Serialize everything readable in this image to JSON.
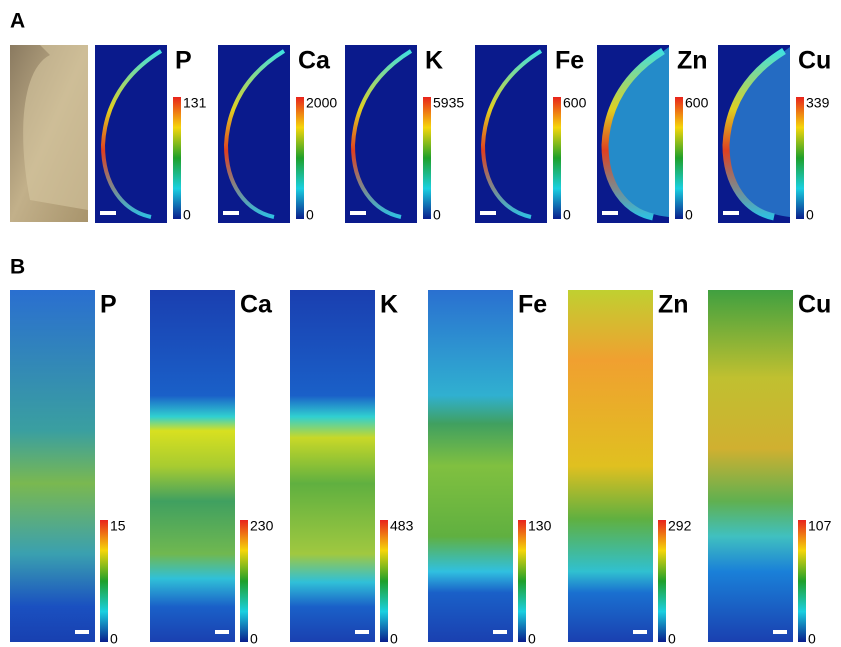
{
  "panels": [
    {
      "label": "A",
      "maps": [
        {
          "element": "P",
          "max": 131,
          "min": 0
        },
        {
          "element": "Ca",
          "max": 2000,
          "min": 0
        },
        {
          "element": "K",
          "max": 5935,
          "min": 0
        },
        {
          "element": "Fe",
          "max": 600,
          "min": 0
        },
        {
          "element": "Zn",
          "max": 600,
          "min": 0
        },
        {
          "element": "Cu",
          "max": 339,
          "min": 0
        }
      ]
    },
    {
      "label": "B",
      "maps": [
        {
          "element": "P",
          "max": 15,
          "min": 0
        },
        {
          "element": "Ca",
          "max": 230,
          "min": 0
        },
        {
          "element": "K",
          "max": 483,
          "min": 0
        },
        {
          "element": "Fe",
          "max": 130,
          "min": 0
        },
        {
          "element": "Zn",
          "max": 292,
          "min": 0
        },
        {
          "element": "Cu",
          "max": 107,
          "min": 0
        }
      ]
    }
  ]
}
